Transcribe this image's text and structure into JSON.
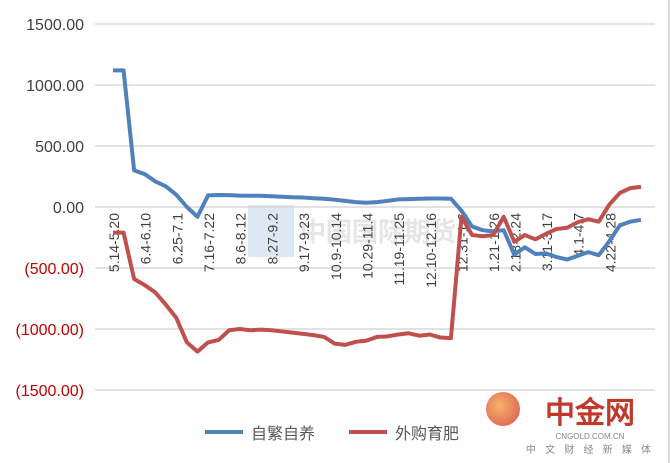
{
  "chart_data": {
    "type": "line",
    "ylim": [
      -1500,
      1500
    ],
    "yticks": [
      1500,
      1000,
      500,
      0,
      -500,
      -1000,
      -1500
    ],
    "ytick_labels": [
      "1500.00",
      "1000.00",
      "500.00",
      "0.00",
      "(500.00)",
      "(1000.00)",
      "(1500.00)"
    ],
    "grid": true,
    "legend_position": "bottom",
    "categories": [
      "5.14-5.20",
      "",
      "",
      "6.4-6.10",
      "",
      "",
      "6.25-7.1",
      "",
      "",
      "7.16-7.22",
      "",
      "",
      "8.6-8.12",
      "",
      "",
      "8.27-9.2",
      "",
      "",
      "9.17-9.23",
      "",
      "",
      "10.9-10.14",
      "",
      "",
      "10.29-11.4",
      "",
      "",
      "11.19-11.25",
      "",
      "",
      "12.10-12.16",
      "",
      "",
      "12.31-1.6",
      "",
      "",
      "1.21-1.26",
      "",
      "2.18-2.24",
      "",
      "",
      "3.11-3.17",
      "",
      "",
      "4.1-4.7",
      "",
      "",
      "4.22-4.28",
      "",
      "",
      ""
    ],
    "series": [
      {
        "name": "自繁自养",
        "color": "#4f81bd",
        "values": [
          1120,
          1120,
          300,
          270,
          210,
          170,
          100,
          0,
          -80,
          95,
          98,
          97,
          93,
          92,
          92,
          88,
          84,
          80,
          78,
          72,
          68,
          60,
          50,
          40,
          35,
          40,
          50,
          62,
          65,
          68,
          70,
          70,
          68,
          -30,
          -160,
          -190,
          -200,
          -190,
          -390,
          -330,
          -385,
          -380,
          -410,
          -430,
          -400,
          -370,
          -395,
          -280,
          -150,
          -120,
          -105
        ]
      },
      {
        "name": "外购育肥",
        "color": "#c0504d",
        "values": [
          -210,
          -210,
          -590,
          -640,
          -700,
          -800,
          -910,
          -1110,
          -1185,
          -1110,
          -1090,
          -1010,
          -1000,
          -1010,
          -1005,
          -1010,
          -1020,
          -1030,
          -1040,
          -1050,
          -1065,
          -1120,
          -1130,
          -1105,
          -1095,
          -1065,
          -1060,
          -1045,
          -1035,
          -1055,
          -1045,
          -1070,
          -1075,
          -80,
          -230,
          -240,
          -230,
          -80,
          -285,
          -230,
          -265,
          -220,
          -180,
          -170,
          -125,
          -100,
          -120,
          20,
          115,
          155,
          165
        ]
      }
    ]
  },
  "watermark": "中国国际期货",
  "logo": {
    "name": "中金网",
    "url": "CNGOLD.COM.CN",
    "tagline": "中 文 财 经 新 媒 体"
  }
}
